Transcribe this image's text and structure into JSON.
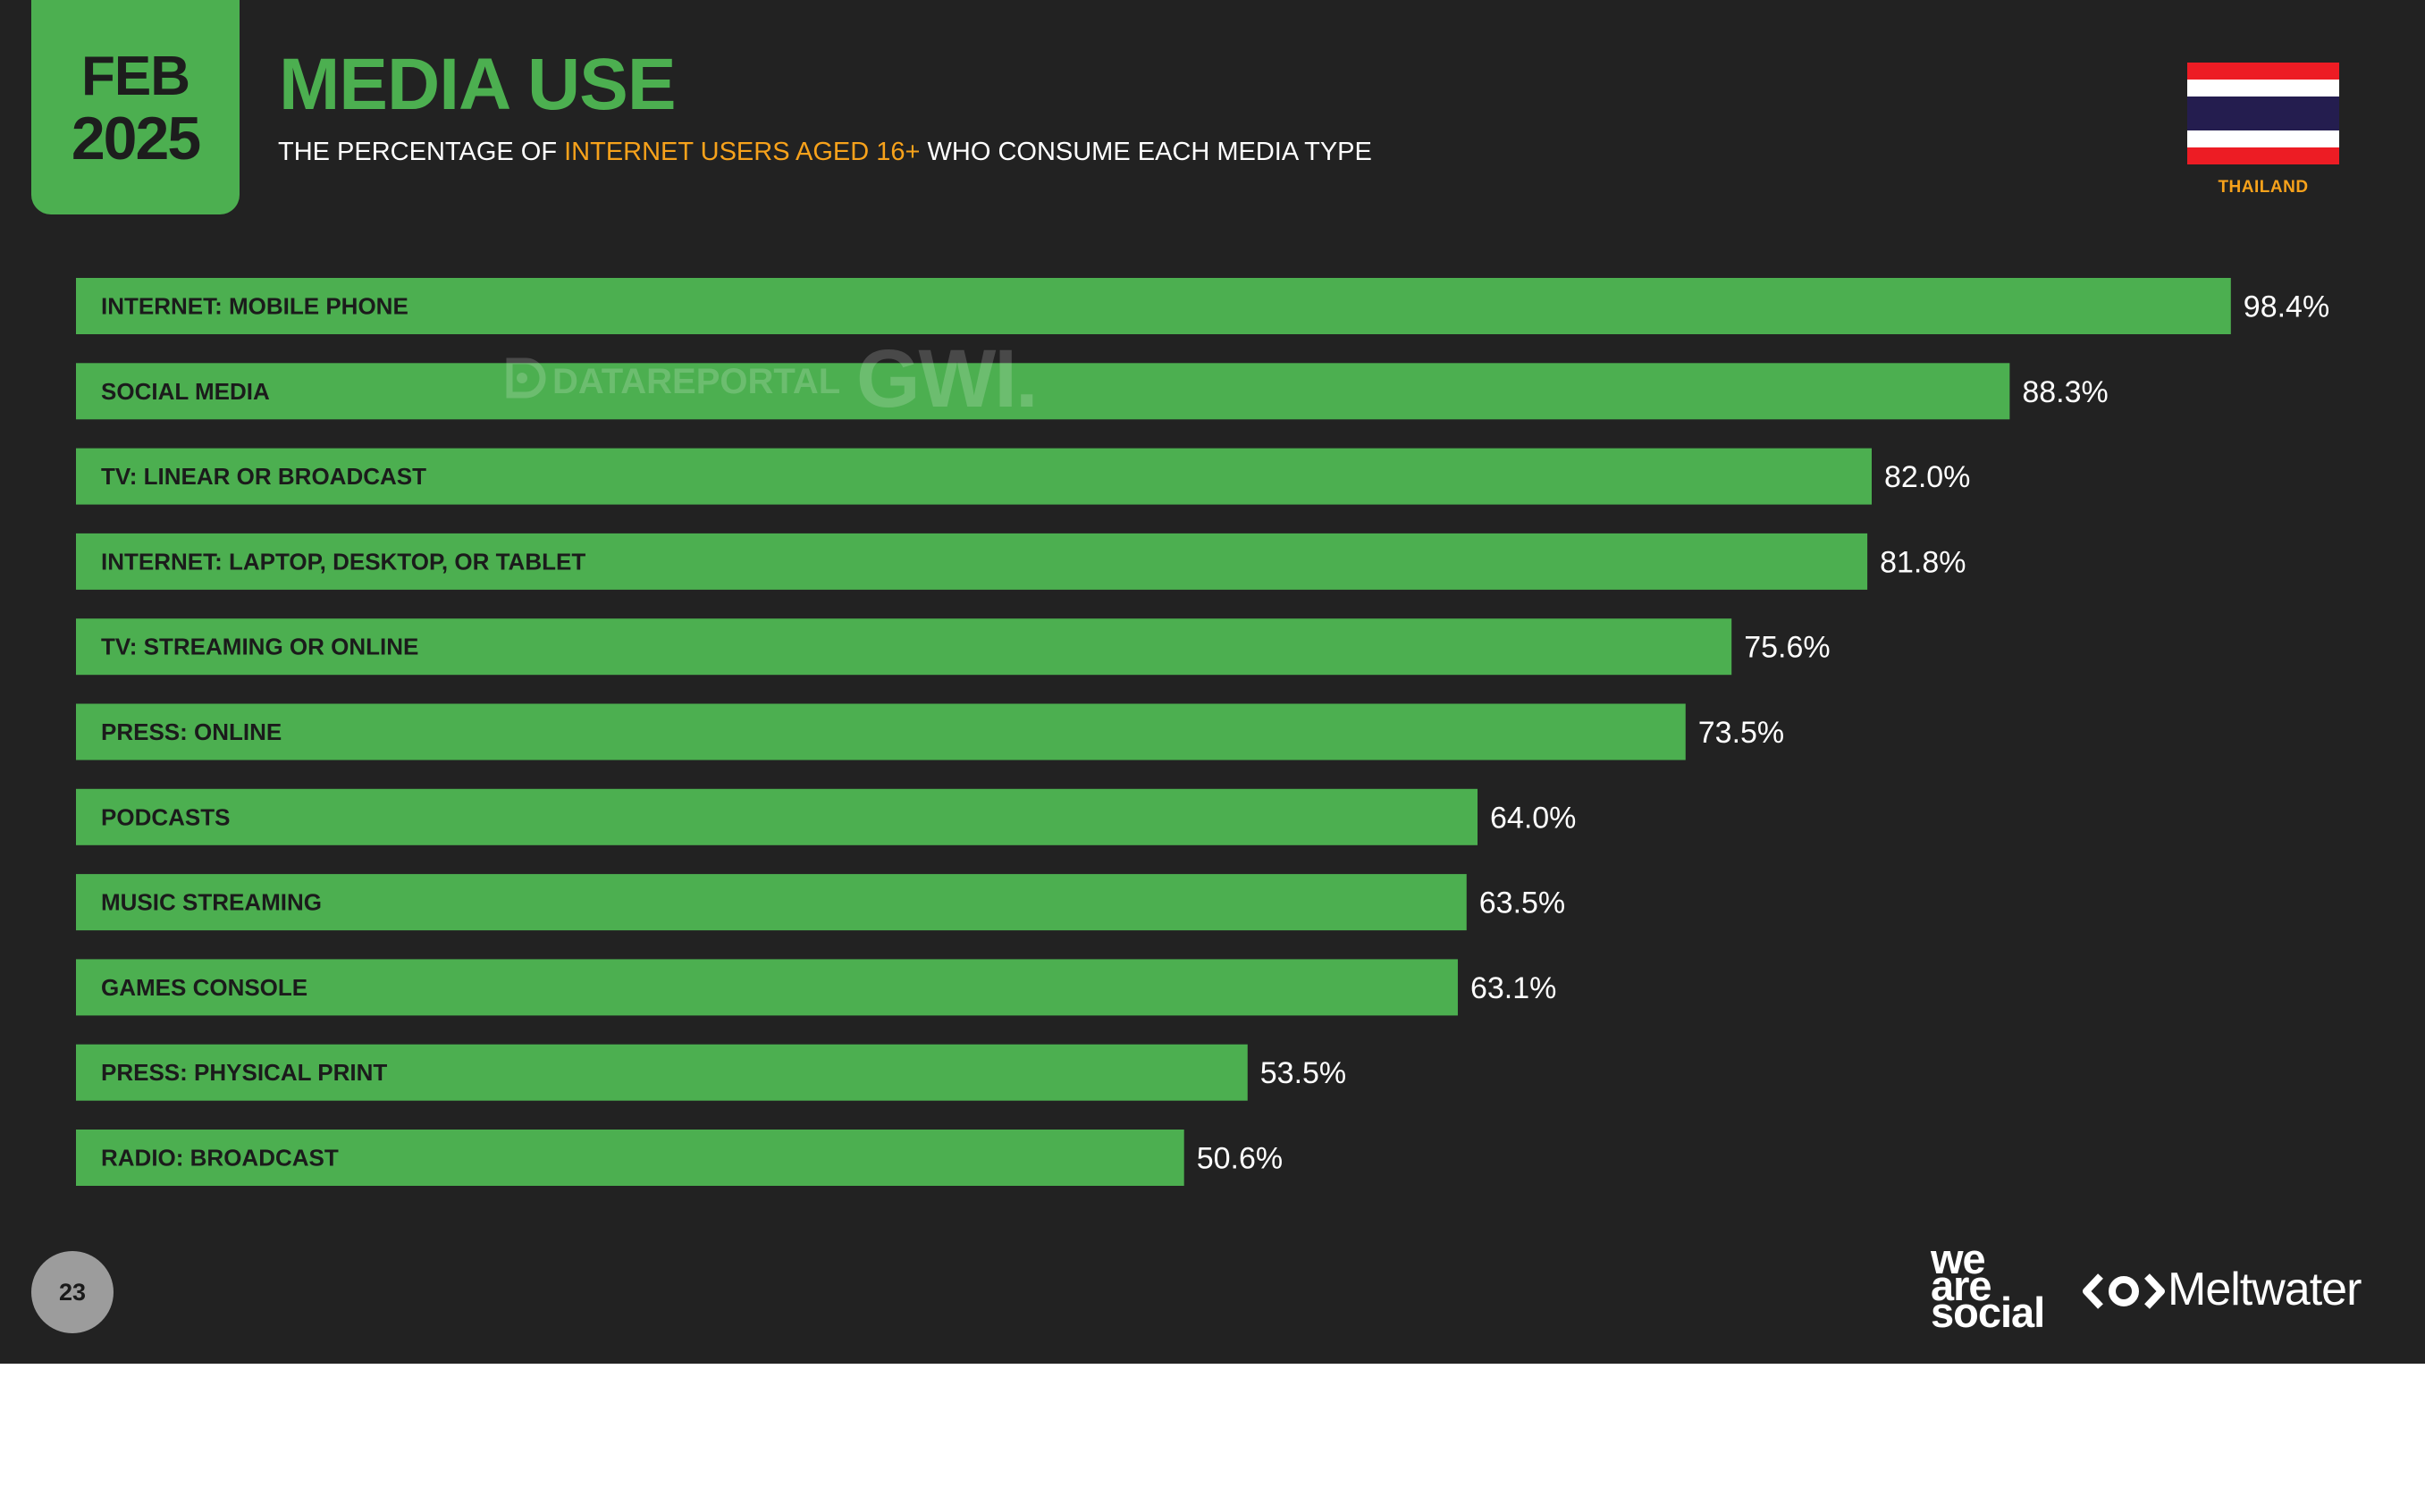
{
  "header": {
    "date_month": "FEB",
    "date_year": "2025",
    "title": "MEDIA USE",
    "subtitle_pre": "THE PERCENTAGE OF ",
    "subtitle_highlight": "INTERNET USERS AGED 16+",
    "subtitle_post": " WHO CONSUME EACH MEDIA TYPE",
    "country": "THAILAND"
  },
  "colors": {
    "background": "#222222",
    "accent_green": "#4caf50",
    "highlight_orange": "#f7a21b",
    "flag_red": "#ed1c24",
    "flag_white": "#ffffff",
    "flag_blue": "#241d4f"
  },
  "icons": {
    "flag": "thailand-flag-icon",
    "meltwater": "meltwater-logo-icon",
    "datareportal": "datareportal-logo-icon"
  },
  "watermarks": {
    "datareportal": "DATAREPORTAL",
    "gwi": "GWI."
  },
  "chart_data": {
    "type": "bar",
    "orientation": "horizontal",
    "categories": [
      "INTERNET: MOBILE PHONE",
      "SOCIAL MEDIA",
      "TV: LINEAR OR BROADCAST",
      "INTERNET: LAPTOP, DESKTOP, OR TABLET",
      "TV: STREAMING OR ONLINE",
      "PRESS: ONLINE",
      "PODCASTS",
      "MUSIC STREAMING",
      "GAMES CONSOLE",
      "PRESS: PHYSICAL PRINT",
      "RADIO: BROADCAST"
    ],
    "values": [
      98.4,
      88.3,
      82.0,
      81.8,
      75.6,
      73.5,
      64.0,
      63.5,
      63.1,
      53.5,
      50.6
    ],
    "value_labels": [
      "98.4%",
      "88.3%",
      "82.0%",
      "81.8%",
      "75.6%",
      "73.5%",
      "64.0%",
      "63.5%",
      "63.1%",
      "53.5%",
      "50.6%"
    ],
    "xlim": [
      0,
      100
    ],
    "grid": false,
    "legend": "none"
  },
  "footer": {
    "page_number": "23",
    "brand_we": "we",
    "brand_are": "are",
    "brand_social": "social",
    "brand_meltwater": "Meltwater"
  }
}
